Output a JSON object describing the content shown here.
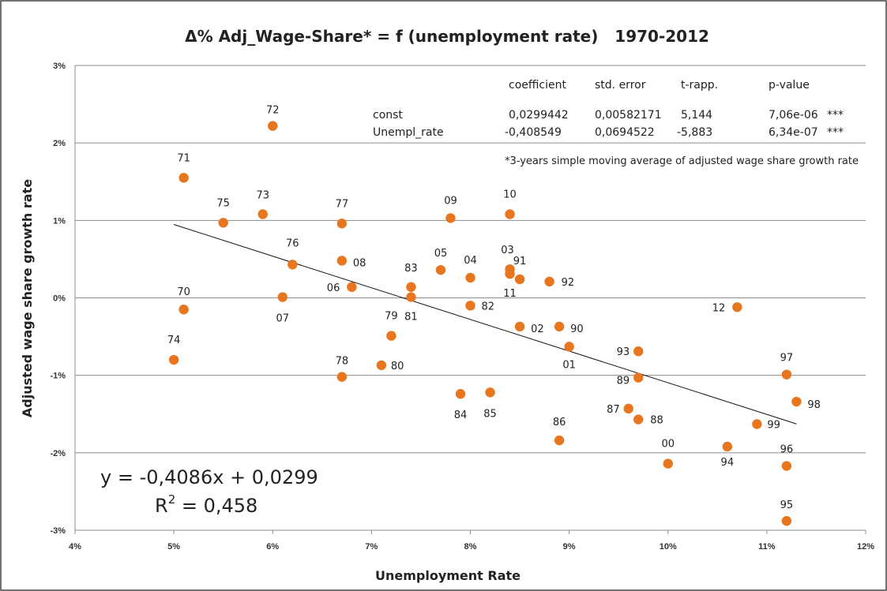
{
  "chart_data": {
    "type": "scatter",
    "title": "Δ% Adj_Wage-Share* = f (unemployment rate)   1970-2012",
    "xlabel": "Unemployment Rate",
    "ylabel": "Adjusted wage share growth rate",
    "xlim": [
      0.04,
      0.12
    ],
    "ylim": [
      -0.03,
      0.03
    ],
    "x_ticks": [
      0.04,
      0.05,
      0.06,
      0.07,
      0.08,
      0.09,
      0.1,
      0.11,
      0.12
    ],
    "x_tick_labels": [
      "4%",
      "5%",
      "6%",
      "7%",
      "8%",
      "9%",
      "10%",
      "11%",
      "12%"
    ],
    "y_ticks": [
      -0.03,
      -0.02,
      -0.01,
      0.0,
      0.01,
      0.02,
      0.03
    ],
    "y_tick_labels": [
      "-3%",
      "-2%",
      "-1%",
      "0%",
      "1%",
      "2%",
      "3%"
    ],
    "grid": "horizontal",
    "marker_color": "#E8761E",
    "points": [
      {
        "label": "70",
        "x": 0.051,
        "y": -0.0015
      },
      {
        "label": "71",
        "x": 0.051,
        "y": 0.0155
      },
      {
        "label": "72",
        "x": 0.06,
        "y": 0.0222
      },
      {
        "label": "73",
        "x": 0.059,
        "y": 0.0108
      },
      {
        "label": "74",
        "x": 0.05,
        "y": -0.008
      },
      {
        "label": "75",
        "x": 0.055,
        "y": 0.0097
      },
      {
        "label": "76",
        "x": 0.062,
        "y": 0.0043
      },
      {
        "label": "77",
        "x": 0.067,
        "y": 0.0096
      },
      {
        "label": "78",
        "x": 0.067,
        "y": -0.0102
      },
      {
        "label": "79",
        "x": 0.072,
        "y": -0.0049
      },
      {
        "label": "80",
        "x": 0.071,
        "y": -0.0087
      },
      {
        "label": "81",
        "x": 0.074,
        "y": 0.0001
      },
      {
        "label": "82",
        "x": 0.08,
        "y": -0.001
      },
      {
        "label": "83",
        "x": 0.074,
        "y": 0.0014
      },
      {
        "label": "84",
        "x": 0.079,
        "y": -0.0124
      },
      {
        "label": "85",
        "x": 0.082,
        "y": -0.0122
      },
      {
        "label": "86",
        "x": 0.089,
        "y": -0.0184
      },
      {
        "label": "87",
        "x": 0.096,
        "y": -0.0143
      },
      {
        "label": "88",
        "x": 0.097,
        "y": -0.0157
      },
      {
        "label": "89",
        "x": 0.097,
        "y": -0.0103
      },
      {
        "label": "90",
        "x": 0.089,
        "y": -0.0037
      },
      {
        "label": "91",
        "x": 0.085,
        "y": 0.0024
      },
      {
        "label": "92",
        "x": 0.088,
        "y": 0.0021
      },
      {
        "label": "93",
        "x": 0.097,
        "y": -0.0069
      },
      {
        "label": "94",
        "x": 0.106,
        "y": -0.0192
      },
      {
        "label": "95",
        "x": 0.112,
        "y": -0.0288
      },
      {
        "label": "96",
        "x": 0.112,
        "y": -0.0217
      },
      {
        "label": "97",
        "x": 0.112,
        "y": -0.0099
      },
      {
        "label": "98",
        "x": 0.113,
        "y": -0.0134
      },
      {
        "label": "99",
        "x": 0.109,
        "y": -0.0163
      },
      {
        "label": "00",
        "x": 0.1,
        "y": -0.0214
      },
      {
        "label": "01",
        "x": 0.09,
        "y": -0.0063
      },
      {
        "label": "02",
        "x": 0.085,
        "y": -0.0037
      },
      {
        "label": "03",
        "x": 0.084,
        "y": 0.0037
      },
      {
        "label": "04",
        "x": 0.08,
        "y": 0.0026
      },
      {
        "label": "05",
        "x": 0.077,
        "y": 0.0036
      },
      {
        "label": "06",
        "x": 0.068,
        "y": 0.0014
      },
      {
        "label": "07",
        "x": 0.061,
        "y": 0.0001
      },
      {
        "label": "08",
        "x": 0.067,
        "y": 0.0048
      },
      {
        "label": "09",
        "x": 0.078,
        "y": 0.0103
      },
      {
        "label": "10",
        "x": 0.084,
        "y": 0.0108
      },
      {
        "label": "11",
        "x": 0.084,
        "y": 0.0031
      },
      {
        "label": "12",
        "x": 0.107,
        "y": -0.0012
      }
    ],
    "trendline": {
      "slope": -0.4086,
      "intercept": 0.0299,
      "x_range": [
        0.05,
        0.113
      ]
    },
    "regression_table": {
      "headers": [
        "coefficient",
        "std. error",
        "t-rapp.",
        "p-value"
      ],
      "rows": [
        {
          "name": "const",
          "coefficient": "0,0299442",
          "std_error": "0,00582171",
          "t": "5,144",
          "p": "7,06e-06",
          "sig": "***"
        },
        {
          "name": "Unempl_rate",
          "coefficient": "-0,408549",
          "std_error": "0,0694522",
          "t": "-5,883",
          "p": "6,34e-07",
          "sig": "***"
        }
      ]
    },
    "note": "*3-years simple moving average of adjusted wage share growth rate",
    "equation": "y = -0,4086x + 0,0299",
    "r_squared_prefix": "R",
    "r_squared_sup": "2",
    "r_squared_value": " = 0,458"
  }
}
